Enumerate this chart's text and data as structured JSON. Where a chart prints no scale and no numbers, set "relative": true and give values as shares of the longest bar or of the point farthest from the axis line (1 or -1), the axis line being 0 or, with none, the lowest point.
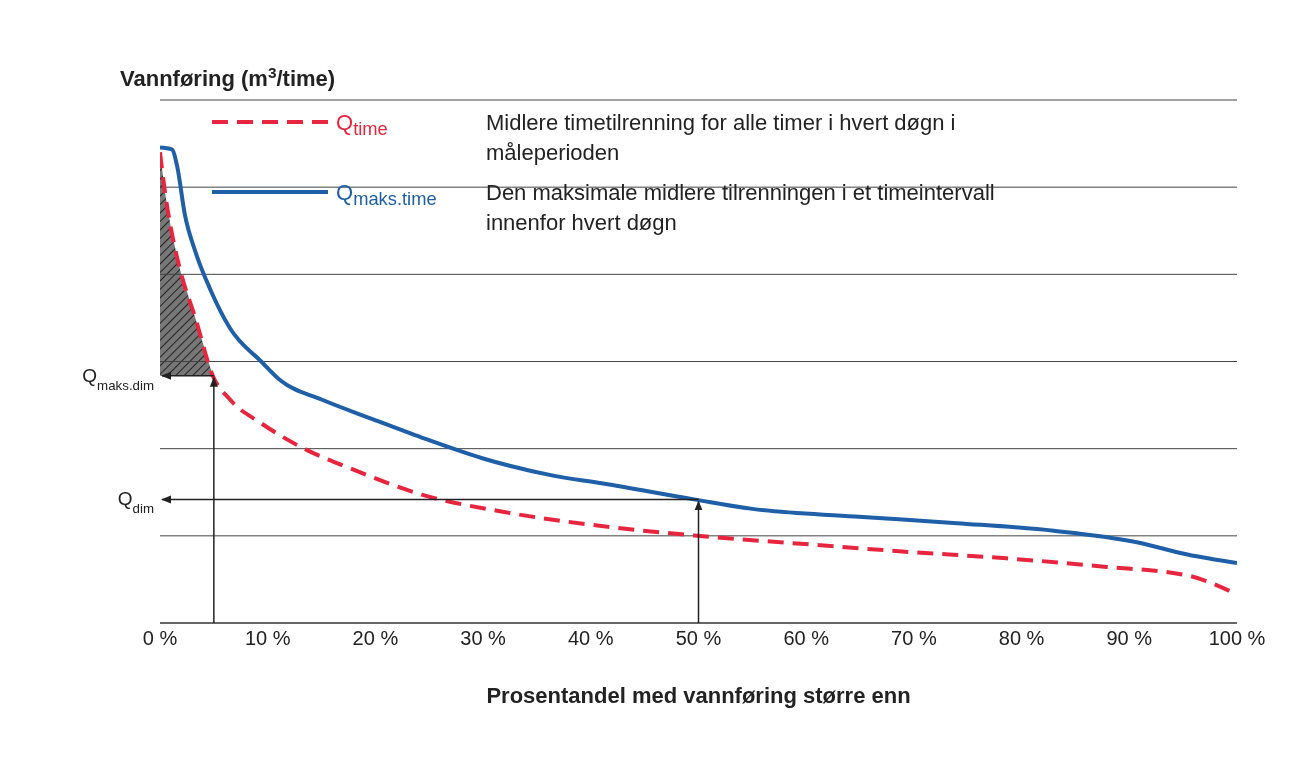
{
  "chart_data": {
    "type": "line",
    "relative": true,
    "ylabel": "Vannføring (m$^{3}$/time)",
    "xlabel": "Prosentandel med vannføring større enn",
    "xlim": [
      0,
      100
    ],
    "xticks": [
      {
        "value": 0,
        "label": "0 %"
      },
      {
        "value": 10,
        "label": "10 %"
      },
      {
        "value": 20,
        "label": "20 %"
      },
      {
        "value": 30,
        "label": "30 %"
      },
      {
        "value": 40,
        "label": "40 %"
      },
      {
        "value": 50,
        "label": "50 %"
      },
      {
        "value": 60,
        "label": "60 %"
      },
      {
        "value": 70,
        "label": "70 %"
      },
      {
        "value": 80,
        "label": "80 %"
      },
      {
        "value": 90,
        "label": "90 %"
      },
      {
        "value": 100,
        "label": "100 %"
      }
    ],
    "grid": "y",
    "legend": "top left",
    "series": [
      {
        "name": "Q$_{time}$",
        "color": "#e8253f",
        "line_style": "dashed",
        "x": [
          0,
          0.5,
          1.1,
          1.9,
          3.3,
          4.9,
          6.5,
          9.4,
          13.1,
          17.8,
          24.3,
          31.8,
          41,
          49.6,
          59.9,
          69.2,
          78.6,
          87.9,
          95.4,
          100
        ],
        "values": [
          0.99,
          0.9,
          0.82,
          0.74,
          0.64,
          0.52,
          0.47,
          0.42,
          0.37,
          0.324,
          0.27,
          0.234,
          0.204,
          0.184,
          0.166,
          0.15,
          0.136,
          0.118,
          0.1,
          0.06
        ]
      },
      {
        "name": "Q$_{maks.time}$",
        "color": "#1f5fa8",
        "line_style": "solid",
        "x": [
          0,
          1.1,
          1.6,
          2.3,
          3.3,
          4.7,
          6.5,
          9.4,
          11.2,
          15,
          19.6,
          24.3,
          30,
          36.5,
          41,
          49.6,
          55,
          64.5,
          74,
          83,
          90.7,
          95.4,
          100
        ],
        "values": [
          1.0,
          0.996,
          0.96,
          0.86,
          0.78,
          0.7,
          0.62,
          0.55,
          0.51,
          0.47,
          0.43,
          0.39,
          0.346,
          0.31,
          0.294,
          0.26,
          0.24,
          0.224,
          0.21,
          0.194,
          0.17,
          0.144,
          0.126
        ]
      }
    ],
    "annotations": [
      "Midlere timetilrenning for alle timer i hvert døgn i måleperioden",
      "Den maksimale midlere tilrenningen i et timeintervall innenfor hvert døgn",
      {
        "text": "Q$_{maks.dim}$",
        "x": 5,
        "y": 0.52
      },
      {
        "text": "Q$_{dim}$",
        "x": 50,
        "y": 0.26
      }
    ]
  }
}
